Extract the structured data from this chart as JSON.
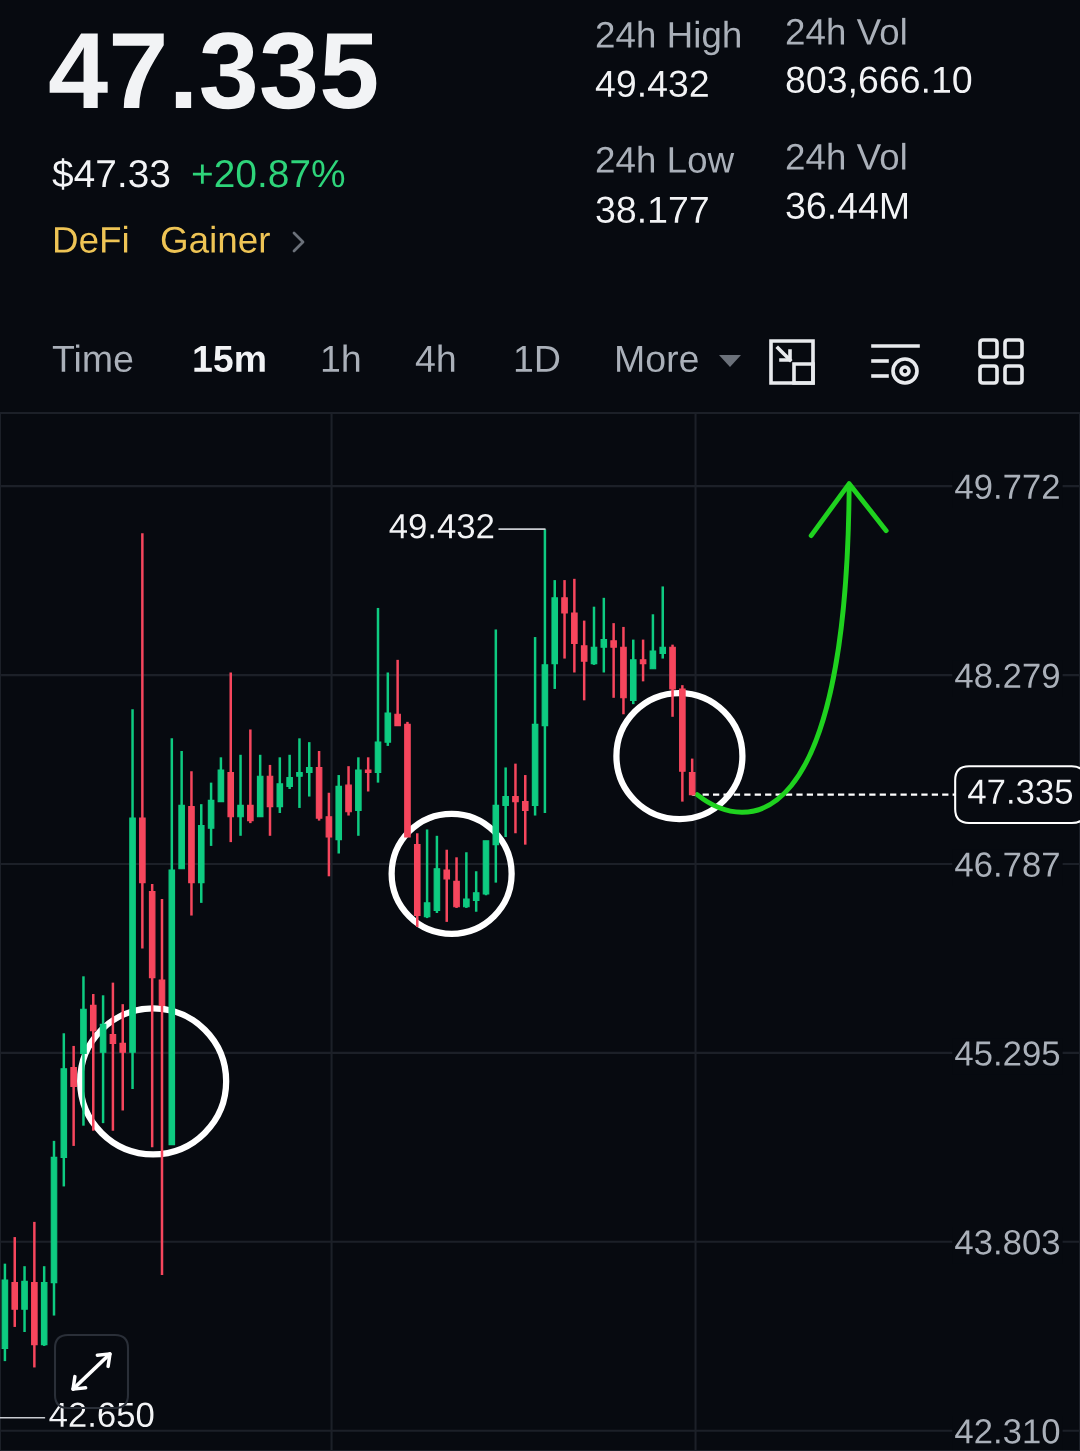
{
  "chart_data": [
    {
      "type": "other",
      "title": "47.335",
      "subtitle": "$47.33",
      "annotations": [
        "+20.87%",
        "DeFi",
        "Gainer",
        "24h High",
        "49.432",
        "24h Vol",
        "803,666.10",
        "24h Low",
        "38.177",
        "24h Vol",
        "36.44M",
        "Time",
        "15m",
        "1h",
        "4h",
        "1D",
        "More"
      ]
    },
    {
      "type": "candlestick",
      "categories": [
        null,
        null,
        null,
        null,
        null,
        null,
        null,
        null,
        null,
        null,
        null,
        null,
        null,
        null,
        null,
        null,
        null,
        null,
        null,
        null,
        null,
        null,
        null,
        null,
        null,
        null,
        null,
        null,
        null,
        null,
        null,
        null,
        null,
        null,
        null,
        null,
        null,
        null,
        null,
        null,
        null,
        null,
        null,
        null,
        null,
        null,
        null,
        null,
        null,
        null,
        null,
        null,
        null,
        null,
        null,
        null,
        null,
        null,
        null,
        null,
        null,
        null,
        null,
        null,
        null,
        null,
        null,
        null,
        null,
        null,
        null,
        null,
        null,
        null,
        null,
        null,
        null,
        null,
        null,
        null,
        null,
        null,
        null,
        null,
        null,
        null,
        null,
        null,
        null,
        null,
        null,
        null,
        null,
        null,
        null,
        null,
        null,
        null,
        null,
        null,
        null,
        null,
        null,
        null,
        null,
        null,
        null,
        null,
        null,
        null
      ],
      "ohlc": [
        [
          42.96,
          43.63,
          42.86,
          43.5
        ],
        [
          43.48,
          43.84,
          43.13,
          43.27
        ],
        [
          43.27,
          43.61,
          43.09,
          43.49
        ],
        [
          43.48,
          43.96,
          42.81,
          42.99
        ],
        [
          42.99,
          43.61,
          42.98,
          43.48
        ],
        [
          43.48,
          44.6,
          43.22,
          44.47
        ],
        [
          44.47,
          45.45,
          44.24,
          45.17
        ],
        [
          45.18,
          45.35,
          44.56,
          45.03
        ],
        [
          45.29,
          45.9,
          44.72,
          45.64
        ],
        [
          45.67,
          45.76,
          44.68,
          45.47
        ],
        [
          45.3,
          45.75,
          44.74,
          45.52
        ],
        [
          45.44,
          45.85,
          44.68,
          45.37
        ],
        [
          45.37,
          45.68,
          44.84,
          45.3
        ],
        [
          45.3,
          48.01,
          45.01,
          47.15
        ],
        [
          47.15,
          49.4,
          46.12,
          46.64
        ],
        [
          46.57,
          46.63,
          44.55,
          45.89
        ],
        [
          45.87,
          46.51,
          43.54,
          45.67
        ],
        [
          44.57,
          47.78,
          44.57,
          46.74
        ],
        [
          46.75,
          47.68,
          46.75,
          47.25
        ],
        [
          47.24,
          47.52,
          46.38,
          46.64
        ],
        [
          46.64,
          47.26,
          46.48,
          47.09
        ],
        [
          47.07,
          47.43,
          46.93,
          47.29
        ],
        [
          47.28,
          47.63,
          47.28,
          47.53
        ],
        [
          47.51,
          48.3,
          46.96,
          47.16
        ],
        [
          47.16,
          47.65,
          47.01,
          47.25
        ],
        [
          47.25,
          47.85,
          47.11,
          47.13
        ],
        [
          47.16,
          47.65,
          47.16,
          47.48
        ],
        [
          47.48,
          47.57,
          47.01,
          47.24
        ],
        [
          47.24,
          47.63,
          47.19,
          47.42
        ],
        [
          47.4,
          47.65,
          47.38,
          47.47
        ],
        [
          47.48,
          47.78,
          47.23,
          47.51
        ],
        [
          47.51,
          47.75,
          47.32,
          47.55
        ],
        [
          47.55,
          47.68,
          47.13,
          47.15
        ],
        [
          47.16,
          47.35,
          46.69,
          47.0
        ],
        [
          46.98,
          47.49,
          46.87,
          47.4
        ],
        [
          47.41,
          47.56,
          47.17,
          47.2
        ],
        [
          47.21,
          47.63,
          47.01,
          47.53
        ],
        [
          47.53,
          47.63,
          47.36,
          47.51
        ],
        [
          47.51,
          48.81,
          47.43,
          47.75
        ],
        [
          47.75,
          48.3,
          47.72,
          47.98
        ],
        [
          47.97,
          48.4,
          47.88,
          47.88
        ],
        [
          47.89,
          47.91,
          47.0,
          47.0
        ],
        [
          46.94,
          47.03,
          46.29,
          46.38
        ],
        [
          46.37,
          47.06,
          46.36,
          46.48
        ],
        [
          46.42,
          47.01,
          46.4,
          46.75
        ],
        [
          46.74,
          46.9,
          46.33,
          46.67
        ],
        [
          46.65,
          46.84,
          46.44,
          46.45
        ],
        [
          46.45,
          46.88,
          46.44,
          46.51
        ],
        [
          46.5,
          46.73,
          46.41,
          46.56
        ],
        [
          46.55,
          46.97,
          46.54,
          46.97
        ],
        [
          46.94,
          48.64,
          46.64,
          47.25
        ],
        [
          47.25,
          47.55,
          47.0,
          47.32
        ],
        [
          47.32,
          47.58,
          47.03,
          47.28
        ],
        [
          47.28,
          47.49,
          46.94,
          47.21
        ],
        [
          47.25,
          48.58,
          47.17,
          47.89
        ],
        [
          47.88,
          49.432,
          47.19,
          48.36
        ],
        [
          48.37,
          49.03,
          48.17,
          48.89
        ],
        [
          48.89,
          49.03,
          48.41,
          48.77
        ],
        [
          48.77,
          49.04,
          48.3,
          48.53
        ],
        [
          48.51,
          48.71,
          48.08,
          48.39
        ],
        [
          48.37,
          48.82,
          48.36,
          48.5
        ],
        [
          48.5,
          48.89,
          48.3,
          48.56
        ],
        [
          48.55,
          48.69,
          48.1,
          48.5
        ],
        [
          48.5,
          48.66,
          47.97,
          48.1
        ],
        [
          48.08,
          48.56,
          48.05,
          48.4
        ],
        [
          48.4,
          48.56,
          48.23,
          48.37
        ],
        [
          48.33,
          48.76,
          48.33,
          48.47
        ],
        [
          48.45,
          48.98,
          48.41,
          48.5
        ],
        [
          48.5,
          48.52,
          47.95,
          48.17
        ],
        [
          48.17,
          48.2,
          47.28,
          47.52
        ],
        [
          47.51,
          47.62,
          47.33,
          47.335
        ],
        null,
        null,
        null,
        null,
        null,
        null,
        null,
        null,
        null,
        null,
        null,
        null,
        null,
        null,
        null,
        null,
        null,
        null,
        null,
        null,
        null,
        null,
        null,
        null,
        null,
        null,
        null,
        null,
        null,
        null,
        null,
        null,
        null,
        null,
        null,
        null,
        null,
        null,
        null
      ],
      "colors": [
        "#0ecb81",
        "#f6465d",
        "#0ecb81",
        "#f6465d",
        "#0ecb81",
        "#0ecb81",
        "#0ecb81",
        "#f6465d",
        "#0ecb81",
        "#f6465d",
        "#0ecb81",
        "#f6465d",
        "#f6465d",
        "#0ecb81",
        "#f6465d",
        "#f6465d",
        "#f6465d",
        "#0ecb81",
        "#0ecb81",
        "#f6465d",
        "#0ecb81",
        "#0ecb81",
        "#0ecb81",
        "#f6465d",
        "#0ecb81",
        "#f6465d",
        "#0ecb81",
        "#f6465d",
        "#0ecb81",
        "#0ecb81",
        "#0ecb81",
        "#0ecb81",
        "#f6465d",
        "#f6465d",
        "#0ecb81",
        "#f6465d",
        "#0ecb81",
        "#f6465d",
        "#0ecb81",
        "#0ecb81",
        "#f6465d",
        "#f6465d",
        "#f6465d",
        "#0ecb81",
        "#0ecb81",
        "#f6465d",
        "#f6465d",
        "#0ecb81",
        "#0ecb81",
        "#0ecb81",
        "#0ecb81",
        "#0ecb81",
        "#f6465d",
        "#f6465d",
        "#0ecb81",
        "#0ecb81",
        "#0ecb81",
        "#f6465d",
        "#f6465d",
        "#f6465d",
        "#0ecb81",
        "#0ecb81",
        "#f6465d",
        "#f6465d",
        "#0ecb81",
        "#f6465d",
        "#0ecb81",
        "#0ecb81",
        "#f6465d",
        "#f6465d",
        "#f6465d",
        null,
        null,
        null,
        null,
        null,
        null,
        null,
        null,
        null,
        null,
        null,
        null,
        null,
        null,
        null,
        null,
        null,
        null,
        null,
        null,
        null,
        null,
        null,
        null,
        null,
        null,
        null,
        null,
        null,
        null,
        null,
        null,
        null,
        null,
        null,
        null,
        null,
        null,
        null
      ],
      "ylim": [
        42.15,
        50.35
      ],
      "yticks": [
        49.772,
        48.279,
        46.787,
        45.295,
        43.803,
        {
          "value": 42.31,
          "label": "42.310"
        }
      ],
      "tick_labels": "y",
      "grid": "y",
      "ref_lines": [
        {
          "axis": "y",
          "value": 47.335,
          "label": "47.335",
          "color": "#ffffff",
          "line_style": "dashed"
        }
      ],
      "annotations": [
        "49.432",
        "42.650"
      ]
    }
  ]
}
